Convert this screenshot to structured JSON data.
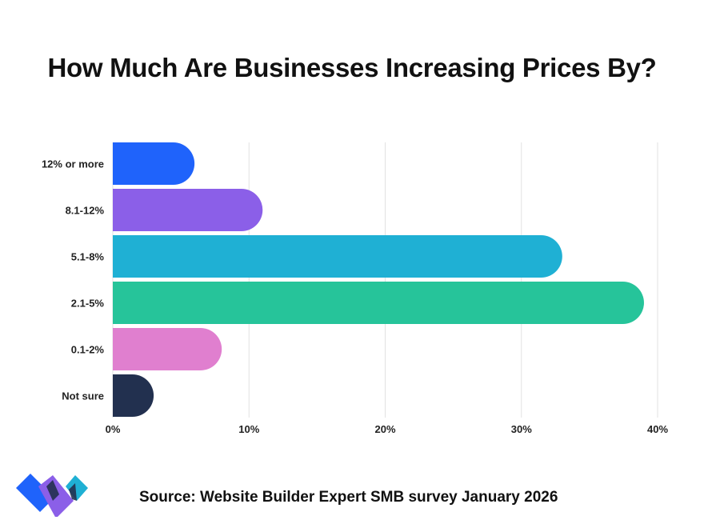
{
  "chart_data": {
    "type": "bar",
    "orientation": "horizontal",
    "title": "How Much Are Businesses Increasing Prices By?",
    "categories": [
      "12% or more",
      "8.1-12%",
      "5.1-8%",
      "2.1-5%",
      "0.1-2%",
      "Not sure"
    ],
    "values": [
      6,
      11,
      33,
      39,
      8,
      3
    ],
    "colors": [
      "#1f63fb",
      "#8b5fe8",
      "#1fb0d4",
      "#26c49a",
      "#e07fcf",
      "#22304f"
    ],
    "xlim": [
      0,
      40
    ],
    "xticks": [
      0,
      10,
      20,
      30,
      40
    ],
    "xtick_labels": [
      "0%",
      "10%",
      "20%",
      "30%",
      "40%"
    ],
    "xlabel": "",
    "ylabel": "",
    "grid": "vertical",
    "legend": "none"
  },
  "footer": {
    "source": "Source: Website Builder Expert SMB survey January 2026"
  },
  "logo": {
    "name": "website-builder-expert-logo"
  }
}
